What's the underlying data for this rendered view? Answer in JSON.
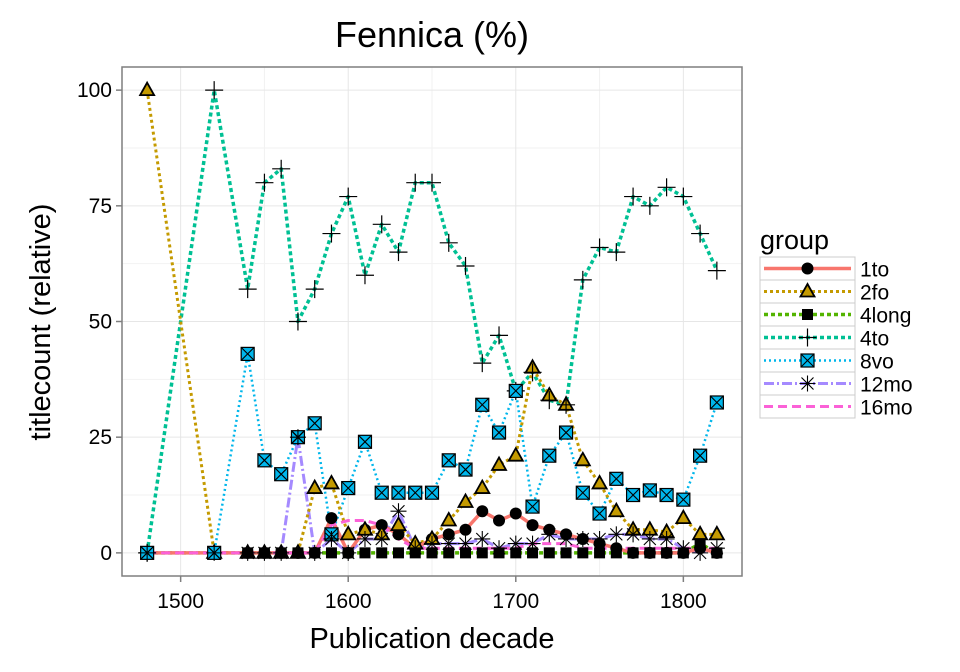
{
  "chart_data": {
    "type": "line",
    "title": "Fennica (%)",
    "xlabel": "Publication decade",
    "ylabel": "titlecount (relative)",
    "xlim": [
      1465,
      1835
    ],
    "ylim": [
      -5,
      105
    ],
    "xticks": [
      1500,
      1600,
      1700,
      1800
    ],
    "yticks": [
      0,
      25,
      50,
      75,
      100
    ],
    "grid": true,
    "legend": {
      "title": "group",
      "position": "right"
    },
    "series": [
      {
        "name": "1to",
        "color": "#F8766D",
        "dash": "",
        "width": 3.5,
        "marker": "circle",
        "x": [
          1480,
          1520,
          1540,
          1550,
          1560,
          1570,
          1580,
          1590,
          1600,
          1610,
          1620,
          1630,
          1640,
          1650,
          1660,
          1670,
          1680,
          1690,
          1700,
          1710,
          1720,
          1730,
          1740,
          1750,
          1760,
          1770,
          1780,
          1790,
          1800,
          1810,
          1820
        ],
        "y": [
          0,
          0,
          0,
          0,
          0,
          0,
          0,
          7.5,
          0,
          5,
          6,
          4,
          1,
          3,
          4,
          5,
          9,
          7,
          8.5,
          6,
          5,
          4,
          3,
          2,
          1,
          0,
          0,
          0,
          0,
          1,
          0
        ]
      },
      {
        "name": "2fo",
        "color": "#C49A00",
        "dash": "3,3",
        "width": 3,
        "marker": "triangle",
        "x": [
          1480,
          1520,
          1540,
          1550,
          1560,
          1570,
          1580,
          1590,
          1600,
          1610,
          1620,
          1630,
          1640,
          1650,
          1660,
          1670,
          1680,
          1690,
          1700,
          1710,
          1720,
          1730,
          1740,
          1750,
          1760,
          1770,
          1780,
          1790,
          1800,
          1810,
          1820
        ],
        "y": [
          100,
          0,
          0,
          0,
          0,
          0,
          14,
          15,
          4,
          5,
          4,
          6,
          2,
          3,
          7,
          11,
          14,
          19,
          21,
          40,
          34,
          32,
          20,
          15,
          9,
          5,
          5,
          4.5,
          7.5,
          4,
          4
        ]
      },
      {
        "name": "4long",
        "color": "#53B400",
        "dash": "4,3",
        "width": 3.5,
        "marker": "square",
        "x": [
          1480,
          1520,
          1540,
          1550,
          1560,
          1570,
          1580,
          1590,
          1600,
          1610,
          1620,
          1630,
          1640,
          1650,
          1660,
          1670,
          1680,
          1690,
          1700,
          1710,
          1720,
          1730,
          1740,
          1750,
          1760,
          1770,
          1780,
          1790,
          1800,
          1810,
          1820
        ],
        "y": [
          0,
          0,
          0,
          0,
          0,
          0,
          0,
          0,
          0,
          0,
          0,
          0,
          0,
          0,
          0,
          0,
          0,
          0,
          0,
          0,
          0,
          0,
          0,
          0,
          0,
          0,
          0,
          0,
          0,
          2,
          0
        ]
      },
      {
        "name": "4to",
        "color": "#00C094",
        "dash": "4,3",
        "width": 3.5,
        "marker": "plus",
        "x": [
          1480,
          1520,
          1540,
          1550,
          1560,
          1570,
          1580,
          1590,
          1600,
          1610,
          1620,
          1630,
          1640,
          1650,
          1660,
          1670,
          1680,
          1690,
          1700,
          1710,
          1720,
          1730,
          1740,
          1750,
          1760,
          1770,
          1780,
          1790,
          1800,
          1810,
          1820
        ],
        "y": [
          0,
          100,
          57,
          80,
          83,
          50,
          57,
          69,
          77,
          60,
          71,
          65,
          80,
          80,
          67,
          62,
          41,
          47,
          35,
          39,
          33,
          32,
          59,
          66,
          65,
          77,
          75,
          79,
          77,
          69,
          61
        ]
      },
      {
        "name": "8vo",
        "color": "#00B6EB",
        "dash": "2,3",
        "width": 2.5,
        "marker": "boxx",
        "x": [
          1480,
          1520,
          1540,
          1550,
          1560,
          1570,
          1580,
          1590,
          1600,
          1610,
          1620,
          1630,
          1640,
          1650,
          1660,
          1670,
          1680,
          1690,
          1700,
          1710,
          1720,
          1730,
          1740,
          1750,
          1760,
          1770,
          1780,
          1790,
          1800,
          1810,
          1820
        ],
        "y": [
          0,
          0,
          43,
          20,
          17,
          25,
          28,
          4,
          14,
          24,
          13,
          13,
          13,
          13,
          20,
          18,
          32,
          26,
          35,
          10,
          21,
          26,
          13,
          8.5,
          16,
          12.5,
          13.5,
          12.5,
          11.5,
          21,
          32.5
        ]
      },
      {
        "name": "12mo",
        "color": "#A58AFF",
        "dash": "10,3,2,3",
        "width": 3,
        "marker": "star",
        "x": [
          1480,
          1520,
          1540,
          1550,
          1560,
          1570,
          1580,
          1590,
          1600,
          1610,
          1620,
          1630,
          1640,
          1650,
          1660,
          1670,
          1680,
          1690,
          1700,
          1710,
          1720,
          1730,
          1740,
          1750,
          1760,
          1770,
          1780,
          1790,
          1800,
          1810,
          1820
        ],
        "y": [
          0,
          0,
          0,
          0,
          0,
          25,
          0,
          3,
          0,
          3,
          3,
          9,
          1,
          2,
          2,
          2,
          3,
          1,
          2,
          2,
          4,
          3,
          3,
          3,
          4,
          4,
          3,
          3,
          1,
          0,
          1
        ]
      },
      {
        "name": "16mo",
        "color": "#FB61D7",
        "dash": "9,5",
        "width": 3,
        "marker": "",
        "x": [
          1480,
          1520,
          1540,
          1550,
          1560,
          1570,
          1580,
          1590,
          1600,
          1610,
          1620,
          1630,
          1640,
          1650,
          1660,
          1670,
          1680,
          1690,
          1700,
          1710,
          1720,
          1730,
          1740,
          1750,
          1760,
          1770,
          1780,
          1790,
          1800,
          1810,
          1820
        ],
        "y": [
          0,
          0,
          0,
          0,
          0,
          0,
          0,
          6,
          7,
          7,
          6,
          3,
          1,
          1,
          1,
          1,
          1,
          1,
          1,
          2,
          2,
          2,
          1,
          1,
          1,
          1,
          1,
          1,
          1,
          1,
          1
        ]
      }
    ]
  }
}
